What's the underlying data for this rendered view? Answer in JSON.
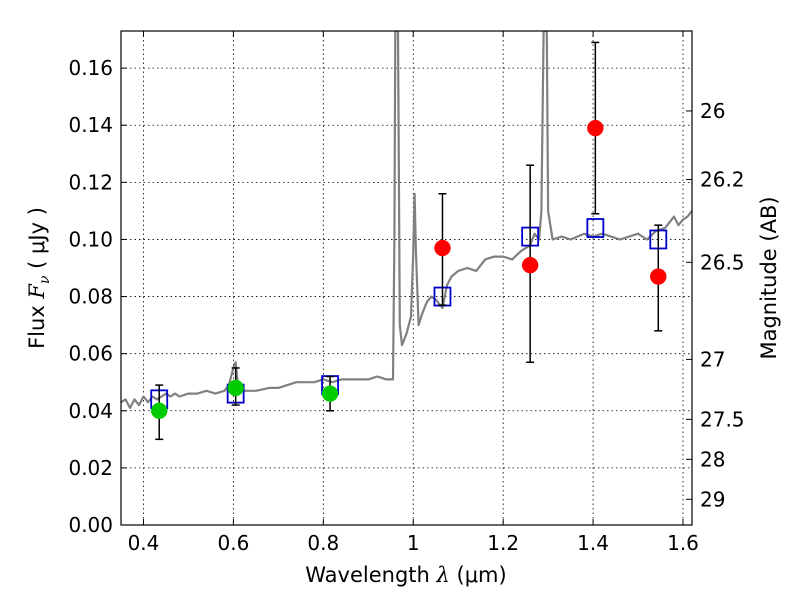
{
  "chart_data": {
    "type": "scatter",
    "xlabel": {
      "prefix": "Wavelength  ",
      "symbol": "λ",
      "unit": " (μm)"
    },
    "ylabel": {
      "prefix": "Flux  ",
      "symbol": "F",
      "sub": "ν",
      "unit": "  ( μJy )"
    },
    "ylabel_right": "Magnitude (AB)",
    "xlim": [
      0.35,
      1.62
    ],
    "ylim": [
      0.0,
      0.173
    ],
    "x_ticks": [
      0.4,
      0.6,
      0.8,
      1.0,
      1.2,
      1.4,
      1.6
    ],
    "x_tick_labels": [
      "0.4",
      "0.6",
      "0.8",
      "1",
      "1.2",
      "1.4",
      "1.6"
    ],
    "y_ticks": [
      0.0,
      0.02,
      0.04,
      0.06,
      0.08,
      0.1,
      0.12,
      0.14,
      0.16
    ],
    "y_tick_labels": [
      "0.00",
      "0.02",
      "0.04",
      "0.06",
      "0.08",
      "0.10",
      "0.12",
      "0.14",
      "0.16"
    ],
    "mag_ticks": [
      {
        "label": "26",
        "flux": 0.145
      },
      {
        "label": "26.2",
        "flux": 0.121
      },
      {
        "label": "26.5",
        "flux": 0.092
      },
      {
        "label": "27",
        "flux": 0.058
      },
      {
        "label": "27.5",
        "flux": 0.037
      },
      {
        "label": "28",
        "flux": 0.023
      },
      {
        "label": "29",
        "flux": 0.009
      }
    ],
    "grid": true,
    "series": [
      {
        "name": "model_spectrum",
        "kind": "line",
        "color": "#808080",
        "points": [
          [
            0.35,
            0.043
          ],
          [
            0.36,
            0.044
          ],
          [
            0.37,
            0.041
          ],
          [
            0.38,
            0.044
          ],
          [
            0.39,
            0.042
          ],
          [
            0.4,
            0.045
          ],
          [
            0.41,
            0.043
          ],
          [
            0.42,
            0.045
          ],
          [
            0.43,
            0.044
          ],
          [
            0.44,
            0.045
          ],
          [
            0.45,
            0.046
          ],
          [
            0.46,
            0.045
          ],
          [
            0.47,
            0.046
          ],
          [
            0.48,
            0.045
          ],
          [
            0.5,
            0.046
          ],
          [
            0.52,
            0.046
          ],
          [
            0.54,
            0.047
          ],
          [
            0.56,
            0.046
          ],
          [
            0.58,
            0.047
          ],
          [
            0.59,
            0.049
          ],
          [
            0.6,
            0.055
          ],
          [
            0.605,
            0.057
          ],
          [
            0.61,
            0.049
          ],
          [
            0.62,
            0.047
          ],
          [
            0.65,
            0.047
          ],
          [
            0.68,
            0.048
          ],
          [
            0.7,
            0.048
          ],
          [
            0.72,
            0.049
          ],
          [
            0.74,
            0.05
          ],
          [
            0.76,
            0.05
          ],
          [
            0.78,
            0.05
          ],
          [
            0.8,
            0.051
          ],
          [
            0.82,
            0.05
          ],
          [
            0.84,
            0.051
          ],
          [
            0.86,
            0.051
          ],
          [
            0.88,
            0.051
          ],
          [
            0.9,
            0.051
          ],
          [
            0.92,
            0.052
          ],
          [
            0.94,
            0.051
          ],
          [
            0.955,
            0.051
          ],
          [
            0.958,
            0.1
          ],
          [
            0.96,
            0.173
          ],
          [
            0.966,
            0.173
          ],
          [
            0.97,
            0.07
          ],
          [
            0.975,
            0.063
          ],
          [
            0.985,
            0.067
          ],
          [
            0.995,
            0.073
          ],
          [
            1.0,
            0.095
          ],
          [
            1.003,
            0.116
          ],
          [
            1.006,
            0.096
          ],
          [
            1.012,
            0.07
          ],
          [
            1.02,
            0.074
          ],
          [
            1.03,
            0.078
          ],
          [
            1.04,
            0.08
          ],
          [
            1.05,
            0.079
          ],
          [
            1.065,
            0.076
          ],
          [
            1.075,
            0.084
          ],
          [
            1.085,
            0.087
          ],
          [
            1.1,
            0.089
          ],
          [
            1.12,
            0.09
          ],
          [
            1.14,
            0.089
          ],
          [
            1.16,
            0.093
          ],
          [
            1.18,
            0.094
          ],
          [
            1.2,
            0.094
          ],
          [
            1.22,
            0.093
          ],
          [
            1.24,
            0.096
          ],
          [
            1.26,
            0.098
          ],
          [
            1.27,
            0.102
          ],
          [
            1.28,
            0.1
          ],
          [
            1.285,
            0.11
          ],
          [
            1.29,
            0.173
          ],
          [
            1.297,
            0.173
          ],
          [
            1.3,
            0.11
          ],
          [
            1.31,
            0.1
          ],
          [
            1.33,
            0.101
          ],
          [
            1.35,
            0.1
          ],
          [
            1.38,
            0.102
          ],
          [
            1.4,
            0.101
          ],
          [
            1.42,
            0.102
          ],
          [
            1.44,
            0.101
          ],
          [
            1.46,
            0.1
          ],
          [
            1.48,
            0.101
          ],
          [
            1.5,
            0.102
          ],
          [
            1.52,
            0.1
          ],
          [
            1.54,
            0.103
          ],
          [
            1.56,
            0.104
          ],
          [
            1.57,
            0.106
          ],
          [
            1.58,
            0.108
          ],
          [
            1.59,
            0.105
          ],
          [
            1.6,
            0.107
          ],
          [
            1.61,
            0.108
          ],
          [
            1.62,
            0.11
          ]
        ]
      },
      {
        "name": "model_bandpass",
        "kind": "open-square",
        "color": "#0000cc",
        "points": [
          [
            0.435,
            0.044
          ],
          [
            0.605,
            0.046
          ],
          [
            0.815,
            0.049
          ],
          [
            1.065,
            0.08
          ],
          [
            1.26,
            0.101
          ],
          [
            1.405,
            0.104
          ],
          [
            1.545,
            0.1
          ]
        ]
      },
      {
        "name": "optical_photometry",
        "kind": "point",
        "color": "#00cc00",
        "points": [
          {
            "x": 0.435,
            "y": 0.04,
            "lo": 0.03,
            "hi": 0.049
          },
          {
            "x": 0.605,
            "y": 0.048,
            "lo": 0.042,
            "hi": 0.055
          },
          {
            "x": 0.815,
            "y": 0.046,
            "lo": 0.04,
            "hi": 0.052
          }
        ]
      },
      {
        "name": "nir_photometry",
        "kind": "point",
        "color": "#ff0000",
        "points": [
          {
            "x": 1.065,
            "y": 0.097,
            "lo": 0.077,
            "hi": 0.116
          },
          {
            "x": 1.26,
            "y": 0.091,
            "lo": 0.057,
            "hi": 0.126
          },
          {
            "x": 1.405,
            "y": 0.139,
            "lo": 0.109,
            "hi": 0.169
          },
          {
            "x": 1.545,
            "y": 0.087,
            "lo": 0.068,
            "hi": 0.105
          }
        ]
      }
    ]
  }
}
